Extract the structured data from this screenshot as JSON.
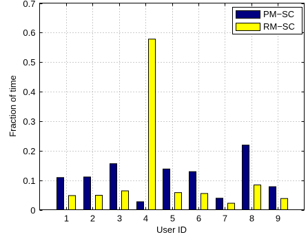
{
  "chart_data": {
    "type": "bar",
    "title": "",
    "xlabel": "User ID",
    "ylabel": "Fraction of time",
    "categories": [
      "1",
      "2",
      "3",
      "4",
      "5",
      "6",
      "7",
      "8",
      "9"
    ],
    "series": [
      {
        "name": "PM−SC",
        "color": "#000080",
        "values": [
          0.109,
          0.111,
          0.156,
          0.027,
          0.138,
          0.129,
          0.039,
          0.219,
          0.078
        ]
      },
      {
        "name": "RM−SC",
        "color": "#ffff00",
        "values": [
          0.048,
          0.049,
          0.064,
          0.578,
          0.058,
          0.055,
          0.022,
          0.084,
          0.038
        ]
      }
    ],
    "ylim": [
      0,
      0.7
    ],
    "yticks": [
      0,
      0.1,
      0.2,
      0.3,
      0.4,
      0.5,
      0.6,
      0.7
    ],
    "ytick_labels": [
      "0",
      "0.1",
      "0.2",
      "0.3",
      "0.4",
      "0.5",
      "0.6",
      "0.7"
    ],
    "grid": true,
    "legend_position": "top-right"
  }
}
